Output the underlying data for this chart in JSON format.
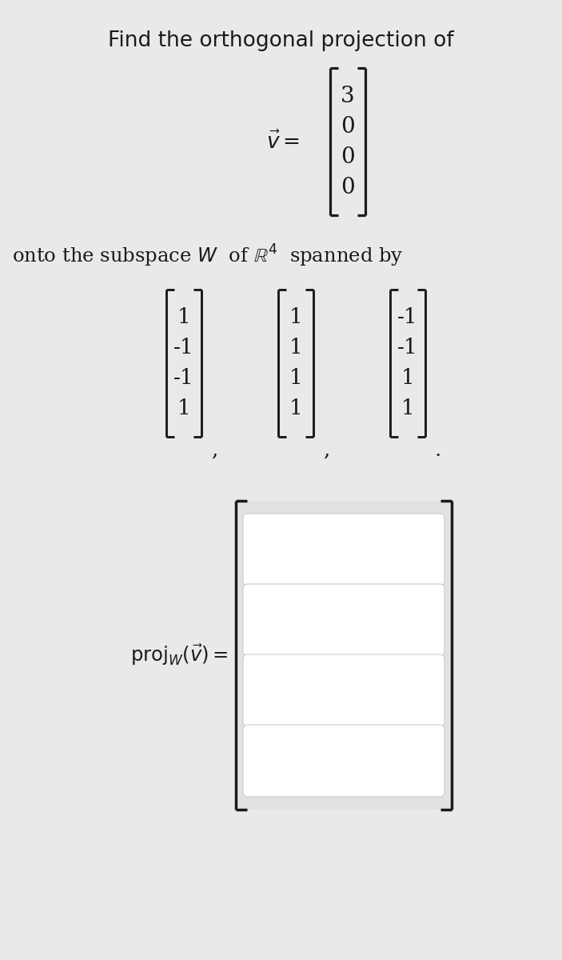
{
  "title": "Find the orthogonal projection of",
  "bg_color": "#e9e9e9",
  "text_color": "#1a1a1a",
  "title_fontsize": 19,
  "v_vector": [
    "3",
    "0",
    "0",
    "0"
  ],
  "v_label": "$\\vec{v} =$",
  "subspace_text": "onto the subspace $W$  of $\\mathbb{R}^4$  spanned by",
  "span_vectors": [
    [
      "1",
      "-1",
      "-1",
      "1"
    ],
    [
      "1",
      "1",
      "1",
      "1"
    ],
    [
      "-1",
      "-1",
      "1",
      "1"
    ]
  ],
  "proj_label_main": "proj",
  "proj_label_sub": "W",
  "n_answer_rows": 4,
  "input_box_color": "#ffffff",
  "input_box_edge_color": "#cccccc",
  "answer_bg": "#e2e2e2"
}
